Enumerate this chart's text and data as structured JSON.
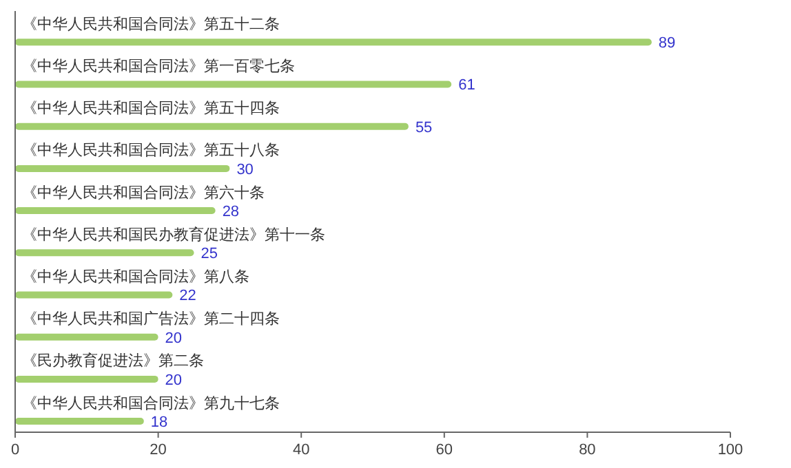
{
  "chart_data": {
    "type": "bar",
    "orientation": "horizontal",
    "categories": [
      "《中华人民共和国合同法》第五十二条",
      "《中华人民共和国合同法》第一百零七条",
      "《中华人民共和国合同法》第五十四条",
      "《中华人民共和国合同法》第五十八条",
      "《中华人民共和国合同法》第六十条",
      "《中华人民共和国民办教育促进法》第十一条",
      "《中华人民共和国合同法》第八条",
      "《中华人民共和国广告法》第二十四条",
      "《民办教育促进法》第二条",
      "《中华人民共和国合同法》第九十七条"
    ],
    "values": [
      89,
      61,
      55,
      30,
      28,
      25,
      22,
      20,
      20,
      18
    ],
    "color": "#a3cf6e",
    "data_labels": true,
    "xlim": [
      0,
      100
    ],
    "xticks": [
      0,
      20,
      40,
      60,
      80,
      100
    ],
    "grid": false
  }
}
